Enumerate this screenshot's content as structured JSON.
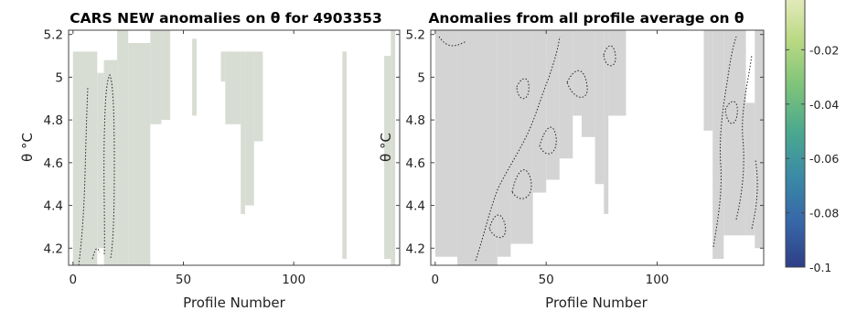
{
  "chart_data": [
    {
      "type": "heatmap",
      "title": "CARS NEW anomalies on θ for 4903353",
      "xlabel": "Profile Number",
      "ylabel": "θ °C",
      "xlim": [
        -2,
        148
      ],
      "ylim": [
        4.12,
        5.22
      ],
      "xticks": [
        0,
        50,
        100
      ],
      "yticks": [
        4.2,
        4.4,
        4.6,
        4.8,
        5.0,
        5.2
      ],
      "ytick_labels": [
        "4.2",
        "4.4",
        "4.6",
        "4.8",
        "5",
        "5.2"
      ],
      "fill_color": "#d8ddd3",
      "cells": [
        {
          "x0": 0,
          "x1": 11,
          "y0": 4.12,
          "y1": 5.12
        },
        {
          "x0": 11,
          "x1": 14,
          "y0": 4.2,
          "y1": 5.02
        },
        {
          "x0": 14,
          "x1": 20,
          "y0": 4.12,
          "y1": 5.08
        },
        {
          "x0": 20,
          "x1": 25,
          "y0": 4.12,
          "y1": 5.22
        },
        {
          "x0": 25,
          "x1": 35,
          "y0": 4.12,
          "y1": 5.16
        },
        {
          "x0": 35,
          "x1": 40,
          "y0": 4.78,
          "y1": 5.22
        },
        {
          "x0": 40,
          "x1": 44,
          "y0": 4.8,
          "y1": 5.22
        },
        {
          "x0": 54,
          "x1": 56,
          "y0": 4.82,
          "y1": 5.18
        },
        {
          "x0": 67,
          "x1": 69,
          "y0": 4.98,
          "y1": 5.12
        },
        {
          "x0": 69,
          "x1": 76,
          "y0": 4.78,
          "y1": 5.12
        },
        {
          "x0": 76,
          "x1": 78,
          "y0": 4.36,
          "y1": 5.12
        },
        {
          "x0": 78,
          "x1": 82,
          "y0": 4.4,
          "y1": 5.12
        },
        {
          "x0": 82,
          "x1": 86,
          "y0": 4.7,
          "y1": 5.12
        },
        {
          "x0": 122,
          "x1": 124,
          "y0": 4.15,
          "y1": 5.12
        },
        {
          "x0": 141,
          "x1": 144,
          "y0": 4.15,
          "y1": 5.1
        },
        {
          "x0": 144,
          "x1": 146,
          "y0": 4.12,
          "y1": 5.22
        }
      ]
    },
    {
      "type": "heatmap",
      "title": "Anomalies from all profile average on θ",
      "xlabel": "Profile Number",
      "ylabel": "θ °C",
      "xlim": [
        -2,
        148
      ],
      "ylim": [
        4.12,
        5.22
      ],
      "xticks": [
        0,
        50,
        100
      ],
      "yticks": [
        4.2,
        4.4,
        4.6,
        4.8,
        5.0,
        5.2
      ],
      "ytick_labels": [
        "4.2",
        "4.4",
        "4.6",
        "4.8",
        "5",
        "5.2"
      ],
      "fill_color": "#d4d4d4",
      "cells": [
        {
          "x0": 0,
          "x1": 10,
          "y0": 4.16,
          "y1": 5.22
        },
        {
          "x0": 10,
          "x1": 28,
          "y0": 4.12,
          "y1": 5.22
        },
        {
          "x0": 28,
          "x1": 34,
          "y0": 4.16,
          "y1": 5.22
        },
        {
          "x0": 34,
          "x1": 44,
          "y0": 4.22,
          "y1": 5.22
        },
        {
          "x0": 44,
          "x1": 50,
          "y0": 4.46,
          "y1": 5.22
        },
        {
          "x0": 50,
          "x1": 56,
          "y0": 4.52,
          "y1": 5.22
        },
        {
          "x0": 56,
          "x1": 62,
          "y0": 4.62,
          "y1": 5.22
        },
        {
          "x0": 62,
          "x1": 66,
          "y0": 4.82,
          "y1": 5.22
        },
        {
          "x0": 66,
          "x1": 72,
          "y0": 4.72,
          "y1": 5.22
        },
        {
          "x0": 72,
          "x1": 76,
          "y0": 4.5,
          "y1": 5.22
        },
        {
          "x0": 76,
          "x1": 78,
          "y0": 4.36,
          "y1": 5.22
        },
        {
          "x0": 78,
          "x1": 86,
          "y0": 4.82,
          "y1": 5.22
        },
        {
          "x0": 121,
          "x1": 125,
          "y0": 4.75,
          "y1": 5.22
        },
        {
          "x0": 125,
          "x1": 130,
          "y0": 4.15,
          "y1": 5.22
        },
        {
          "x0": 130,
          "x1": 140,
          "y0": 4.26,
          "y1": 5.22
        },
        {
          "x0": 140,
          "x1": 144,
          "y0": 4.26,
          "y1": 4.88
        },
        {
          "x0": 144,
          "x1": 148,
          "y0": 4.2,
          "y1": 5.22
        }
      ]
    }
  ],
  "colorbar": {
    "tick_labels": [
      "-0.02",
      "-0.04",
      "-0.06",
      "-0.08",
      "-0.1"
    ],
    "tick_values": [
      -0.02,
      -0.04,
      -0.06,
      -0.08,
      -0.1
    ],
    "range": [
      -0.1,
      0.0
    ],
    "colors": [
      "#2e3f86",
      "#3767a8",
      "#3a8aa6",
      "#4ba98e",
      "#7ec37a",
      "#b9d982",
      "#e7ebc0"
    ]
  }
}
